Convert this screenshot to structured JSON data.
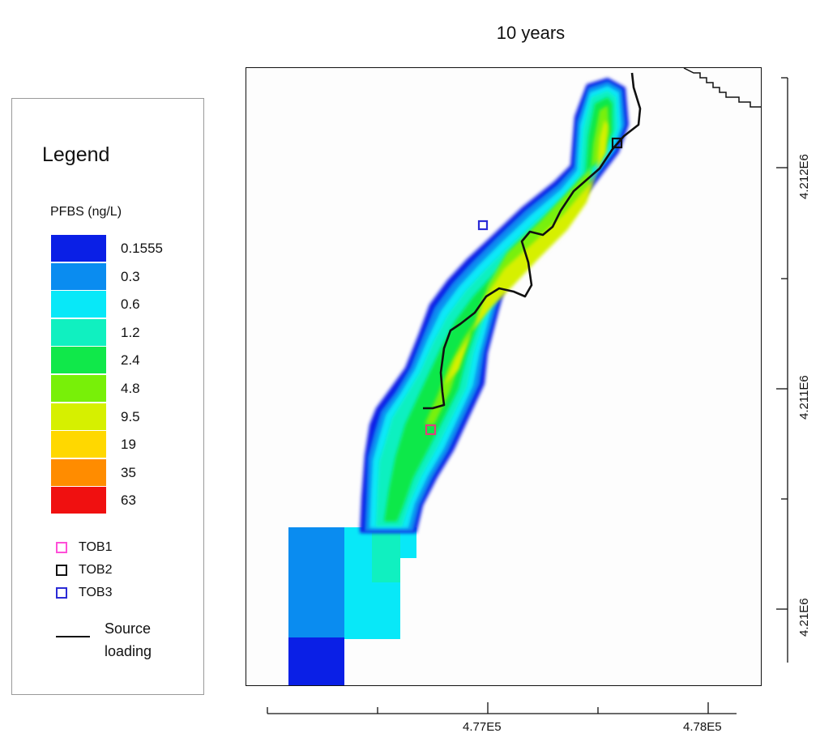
{
  "title": "10 years",
  "legend": {
    "title": "Legend",
    "variable": "PFBS (ng/L)",
    "classes": [
      {
        "label": "0.1555",
        "color": "#0a1fe6"
      },
      {
        "label": "0.3",
        "color": "#0a8cf0"
      },
      {
        "label": "0.6",
        "color": "#08e8f8"
      },
      {
        "label": "1.2",
        "color": "#10f0c0"
      },
      {
        "label": "2.4",
        "color": "#10e84a"
      },
      {
        "label": "4.8",
        "color": "#78f008"
      },
      {
        "label": "9.5",
        "color": "#d6f000"
      },
      {
        "label": "19",
        "color": "#ffd800"
      },
      {
        "label": "35",
        "color": "#ff8c00"
      },
      {
        "label": "63",
        "color": "#f01010"
      }
    ],
    "observations": [
      {
        "label": "TOB1",
        "color": "#ff4fd8"
      },
      {
        "label": "TOB2",
        "color": "#111111"
      },
      {
        "label": "TOB3",
        "color": "#2b2bd6"
      }
    ],
    "source_label": "Source loading"
  },
  "x_axis": {
    "ticks": [
      "4.77E5",
      "4.78E5"
    ]
  },
  "y_axis": {
    "ticks": [
      "4.212E6",
      "4.211E6",
      "4.21E6"
    ]
  }
}
